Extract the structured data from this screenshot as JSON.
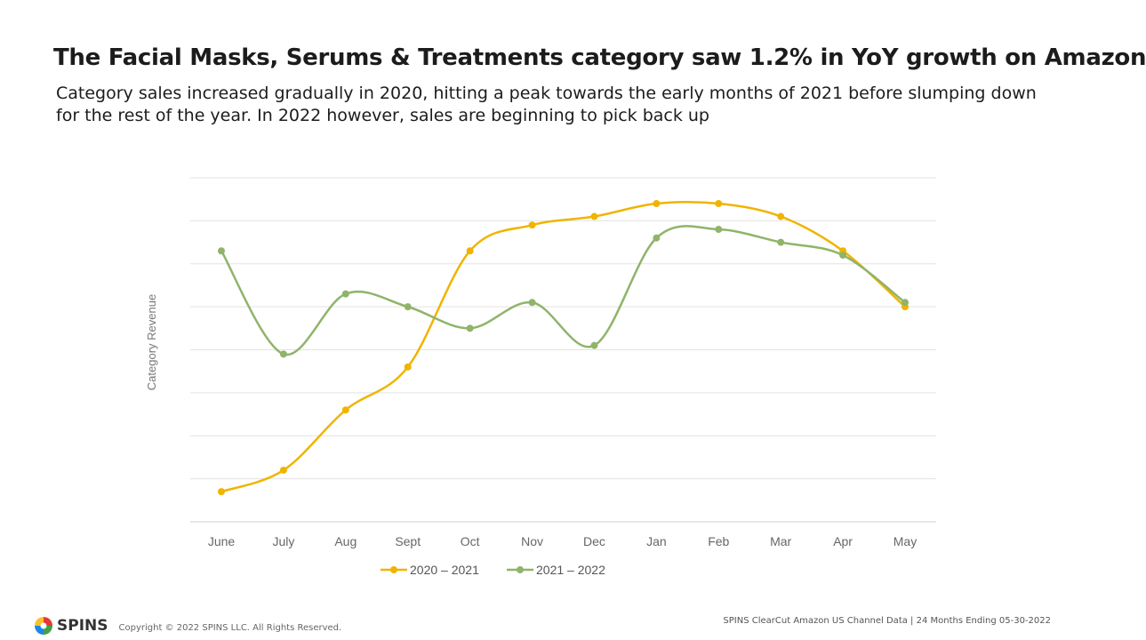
{
  "header": {
    "title": "The Facial Masks, Serums & Treatments category saw 1.2% in YoY growth on Amazon",
    "subtitle": "Category sales increased gradually in 2020, hitting a peak towards the early months of 2021 before slumping down for the rest of the year. In 2022 however, sales are beginning to pick back up"
  },
  "chart_data": {
    "type": "line",
    "categories": [
      "June",
      "July",
      "Aug",
      "Sept",
      "Oct",
      "Nov",
      "Dec",
      "Jan",
      "Feb",
      "Mar",
      "Apr",
      "May"
    ],
    "ylabel": "Category Revenue",
    "ylim": [
      0,
      8
    ],
    "grid": true,
    "legend_position": "bottom",
    "series": [
      {
        "name": "2020 – 2021",
        "color": "#f0b400",
        "values": [
          0.7,
          1.2,
          2.6,
          3.6,
          6.3,
          6.9,
          7.1,
          7.4,
          7.4,
          7.1,
          6.3,
          5.0
        ]
      },
      {
        "name": "2021 – 2022",
        "color": "#8fb46a",
        "values": [
          6.3,
          3.9,
          5.3,
          5.0,
          4.5,
          5.1,
          4.1,
          6.6,
          6.8,
          6.5,
          6.2,
          5.1
        ]
      }
    ]
  },
  "footer": {
    "brand": "SPINS",
    "copyright": "Copyright © 2022 SPINS LLC. All Rights Reserved.",
    "source": "SPINS ClearCut Amazon US Channel Data | 24 Months Ending 05-30-2022"
  }
}
